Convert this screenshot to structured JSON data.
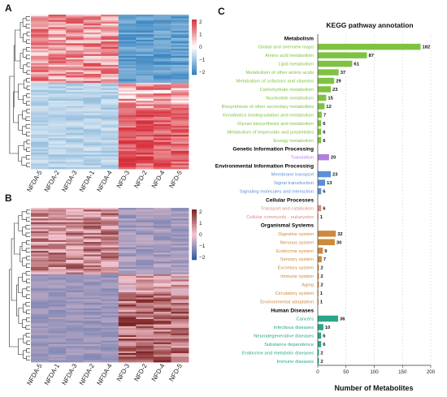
{
  "panels": {
    "a": "A",
    "b": "B",
    "c": "C"
  },
  "heatmap_a": {
    "samples": [
      "NFDA-5",
      "NFDA-2",
      "NFDA-3",
      "NFDA-1",
      "NFDA-4",
      "NFD-3",
      "NFD-2",
      "NFD-4",
      "NFD-5"
    ],
    "legend_ticks": [
      "2",
      "1",
      "0",
      "−1",
      "−2"
    ],
    "scale": {
      "high": "#d7303b",
      "mid": "#ffffff",
      "low": "#2f7fbe"
    }
  },
  "heatmap_b": {
    "samples": [
      "NFDA-5",
      "NFDA-1",
      "NFDA-3",
      "NFDA-2",
      "NFDA-4",
      "NFD-3",
      "NFD-2",
      "NFD-4",
      "NFD-5"
    ],
    "legend_ticks": [
      "2",
      "1",
      "0",
      "−1",
      "−2"
    ],
    "scale": {
      "high": "#7a1f1f",
      "mid": "#f7c8d2",
      "low": "#2c5aa0"
    }
  },
  "chart_data": {
    "type": "bar",
    "orientation": "horizontal",
    "title": "KEGG pathway annotation",
    "xlabel": "Number of Metabolites",
    "xlim": [
      0,
      200
    ],
    "xticks": [
      "0",
      "50",
      "100",
      "150",
      "200"
    ],
    "grid": true,
    "groups": [
      {
        "name": "Metabolism",
        "color": "#7fc241",
        "items": [
          {
            "label": "Global and overview maps",
            "value": 182
          },
          {
            "label": "Amino acid metabolism",
            "value": 87
          },
          {
            "label": "Lipid metabolism",
            "value": 61
          },
          {
            "label": "Metabolism of other amino acids",
            "value": 37
          },
          {
            "label": "Metabolism of cofactors and vitamins",
            "value": 29
          },
          {
            "label": "Carbohydrate metabolism",
            "value": 23
          },
          {
            "label": "Nucleotide metabolism",
            "value": 15
          },
          {
            "label": "Biosynthesis of other secondary metabolites",
            "value": 12
          },
          {
            "label": "Xenobiotics biodegradation and metabolism",
            "value": 7
          },
          {
            "label": "Glycan biosynthesis and metabolism",
            "value": 6
          },
          {
            "label": "Metabolism of terpenoids and polyketides",
            "value": 6
          },
          {
            "label": "Energy metabolism",
            "value": 6
          }
        ]
      },
      {
        "name": "Genetic Information Processing",
        "color": "#b07fe0",
        "items": [
          {
            "label": "Translation",
            "value": 20
          }
        ]
      },
      {
        "name": "Environmental Information Processing",
        "color": "#5b8fd6",
        "items": [
          {
            "label": "Membrane transport",
            "value": 23
          },
          {
            "label": "Signal transduction",
            "value": 13
          },
          {
            "label": "Signaling molecules and interaction",
            "value": 6
          }
        ]
      },
      {
        "name": "Cellular Processes",
        "color": "#e08a7f",
        "items": [
          {
            "label": "Transport and catabolism",
            "value": 6
          },
          {
            "label": "Cellular community - eukaryotes",
            "value": 1
          }
        ]
      },
      {
        "name": "Organismal Systems",
        "color": "#cc8a3e",
        "items": [
          {
            "label": "Digestive system",
            "value": 32
          },
          {
            "label": "Nervous system",
            "value": 30
          },
          {
            "label": "Endocrine system",
            "value": 9
          },
          {
            "label": "Sensory system",
            "value": 7
          },
          {
            "label": "Excretory system",
            "value": 2
          },
          {
            "label": "Immune system",
            "value": 2
          },
          {
            "label": "Aging",
            "value": 2
          },
          {
            "label": "Circulatory system",
            "value": 1
          },
          {
            "label": "Environmental adaptation",
            "value": 1
          }
        ]
      },
      {
        "name": "Human Diseases",
        "color": "#2aa68a",
        "items": [
          {
            "label": "Cancers",
            "value": 36
          },
          {
            "label": "Infectious diseases",
            "value": 10
          },
          {
            "label": "Neurodegenerative diseases",
            "value": 6
          },
          {
            "label": "Substance dependence",
            "value": 6
          },
          {
            "label": "Endocrine and metabolic diseases",
            "value": 2
          },
          {
            "label": "Immune diseases",
            "value": 2
          }
        ]
      }
    ]
  }
}
